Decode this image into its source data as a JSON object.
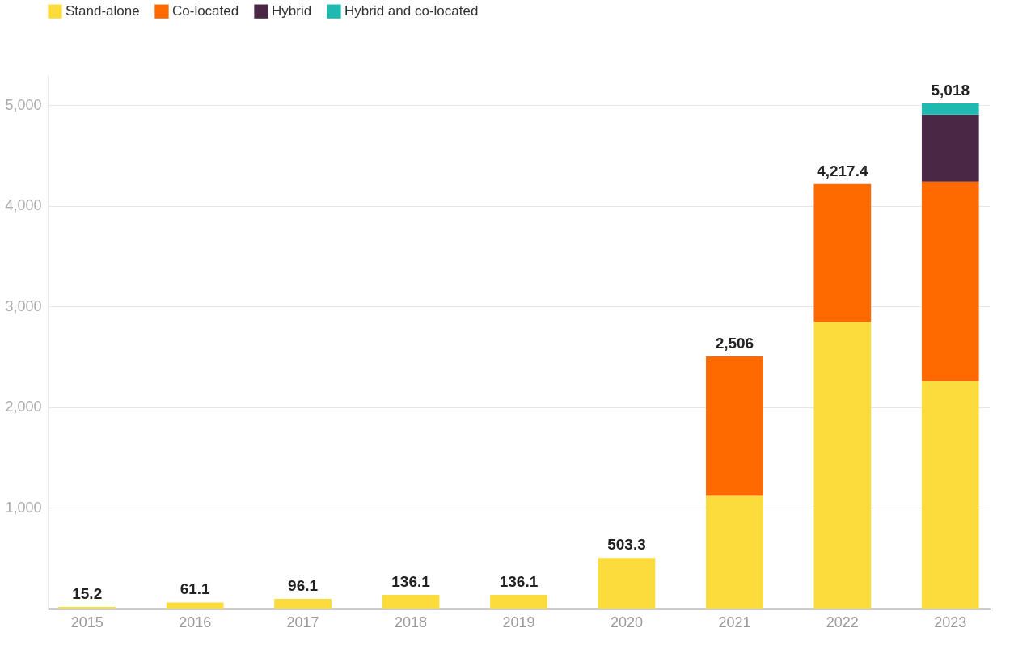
{
  "chart_data": {
    "type": "bar",
    "stacked": true,
    "categories": [
      "2015",
      "2016",
      "2017",
      "2018",
      "2019",
      "2020",
      "2021",
      "2022",
      "2023"
    ],
    "series": [
      {
        "name": "Stand-alone",
        "color": "#fcdc3a",
        "values": [
          15.2,
          61.1,
          96.1,
          136.1,
          136.1,
          503.3,
          1121,
          2848,
          2258
        ]
      },
      {
        "name": "Co-located",
        "color": "#ff6a00",
        "values": [
          null,
          null,
          null,
          null,
          null,
          null,
          1385,
          1369.4,
          1984
        ]
      },
      {
        "name": "Hybrid",
        "color": "#4a2745",
        "values": [
          null,
          null,
          null,
          null,
          null,
          null,
          null,
          null,
          667
        ]
      },
      {
        "name": "Hybrid and co-located",
        "color": "#20b9b0",
        "values": [
          null,
          null,
          null,
          null,
          null,
          null,
          null,
          null,
          109
        ]
      }
    ],
    "totals": [
      "15.2",
      "61.1",
      "96.1",
      "136.1",
      "136.1",
      "503.3",
      "2,506",
      "4,217.4",
      "5,018"
    ],
    "ylim": [
      0,
      5300
    ],
    "yticks": [
      {
        "value": 1000,
        "label": "1,000"
      },
      {
        "value": 2000,
        "label": "2,000"
      },
      {
        "value": 3000,
        "label": "3,000"
      },
      {
        "value": 4000,
        "label": "4,000"
      },
      {
        "value": 5000,
        "label": "5,000"
      }
    ],
    "grid": "y",
    "legend": "top left"
  }
}
